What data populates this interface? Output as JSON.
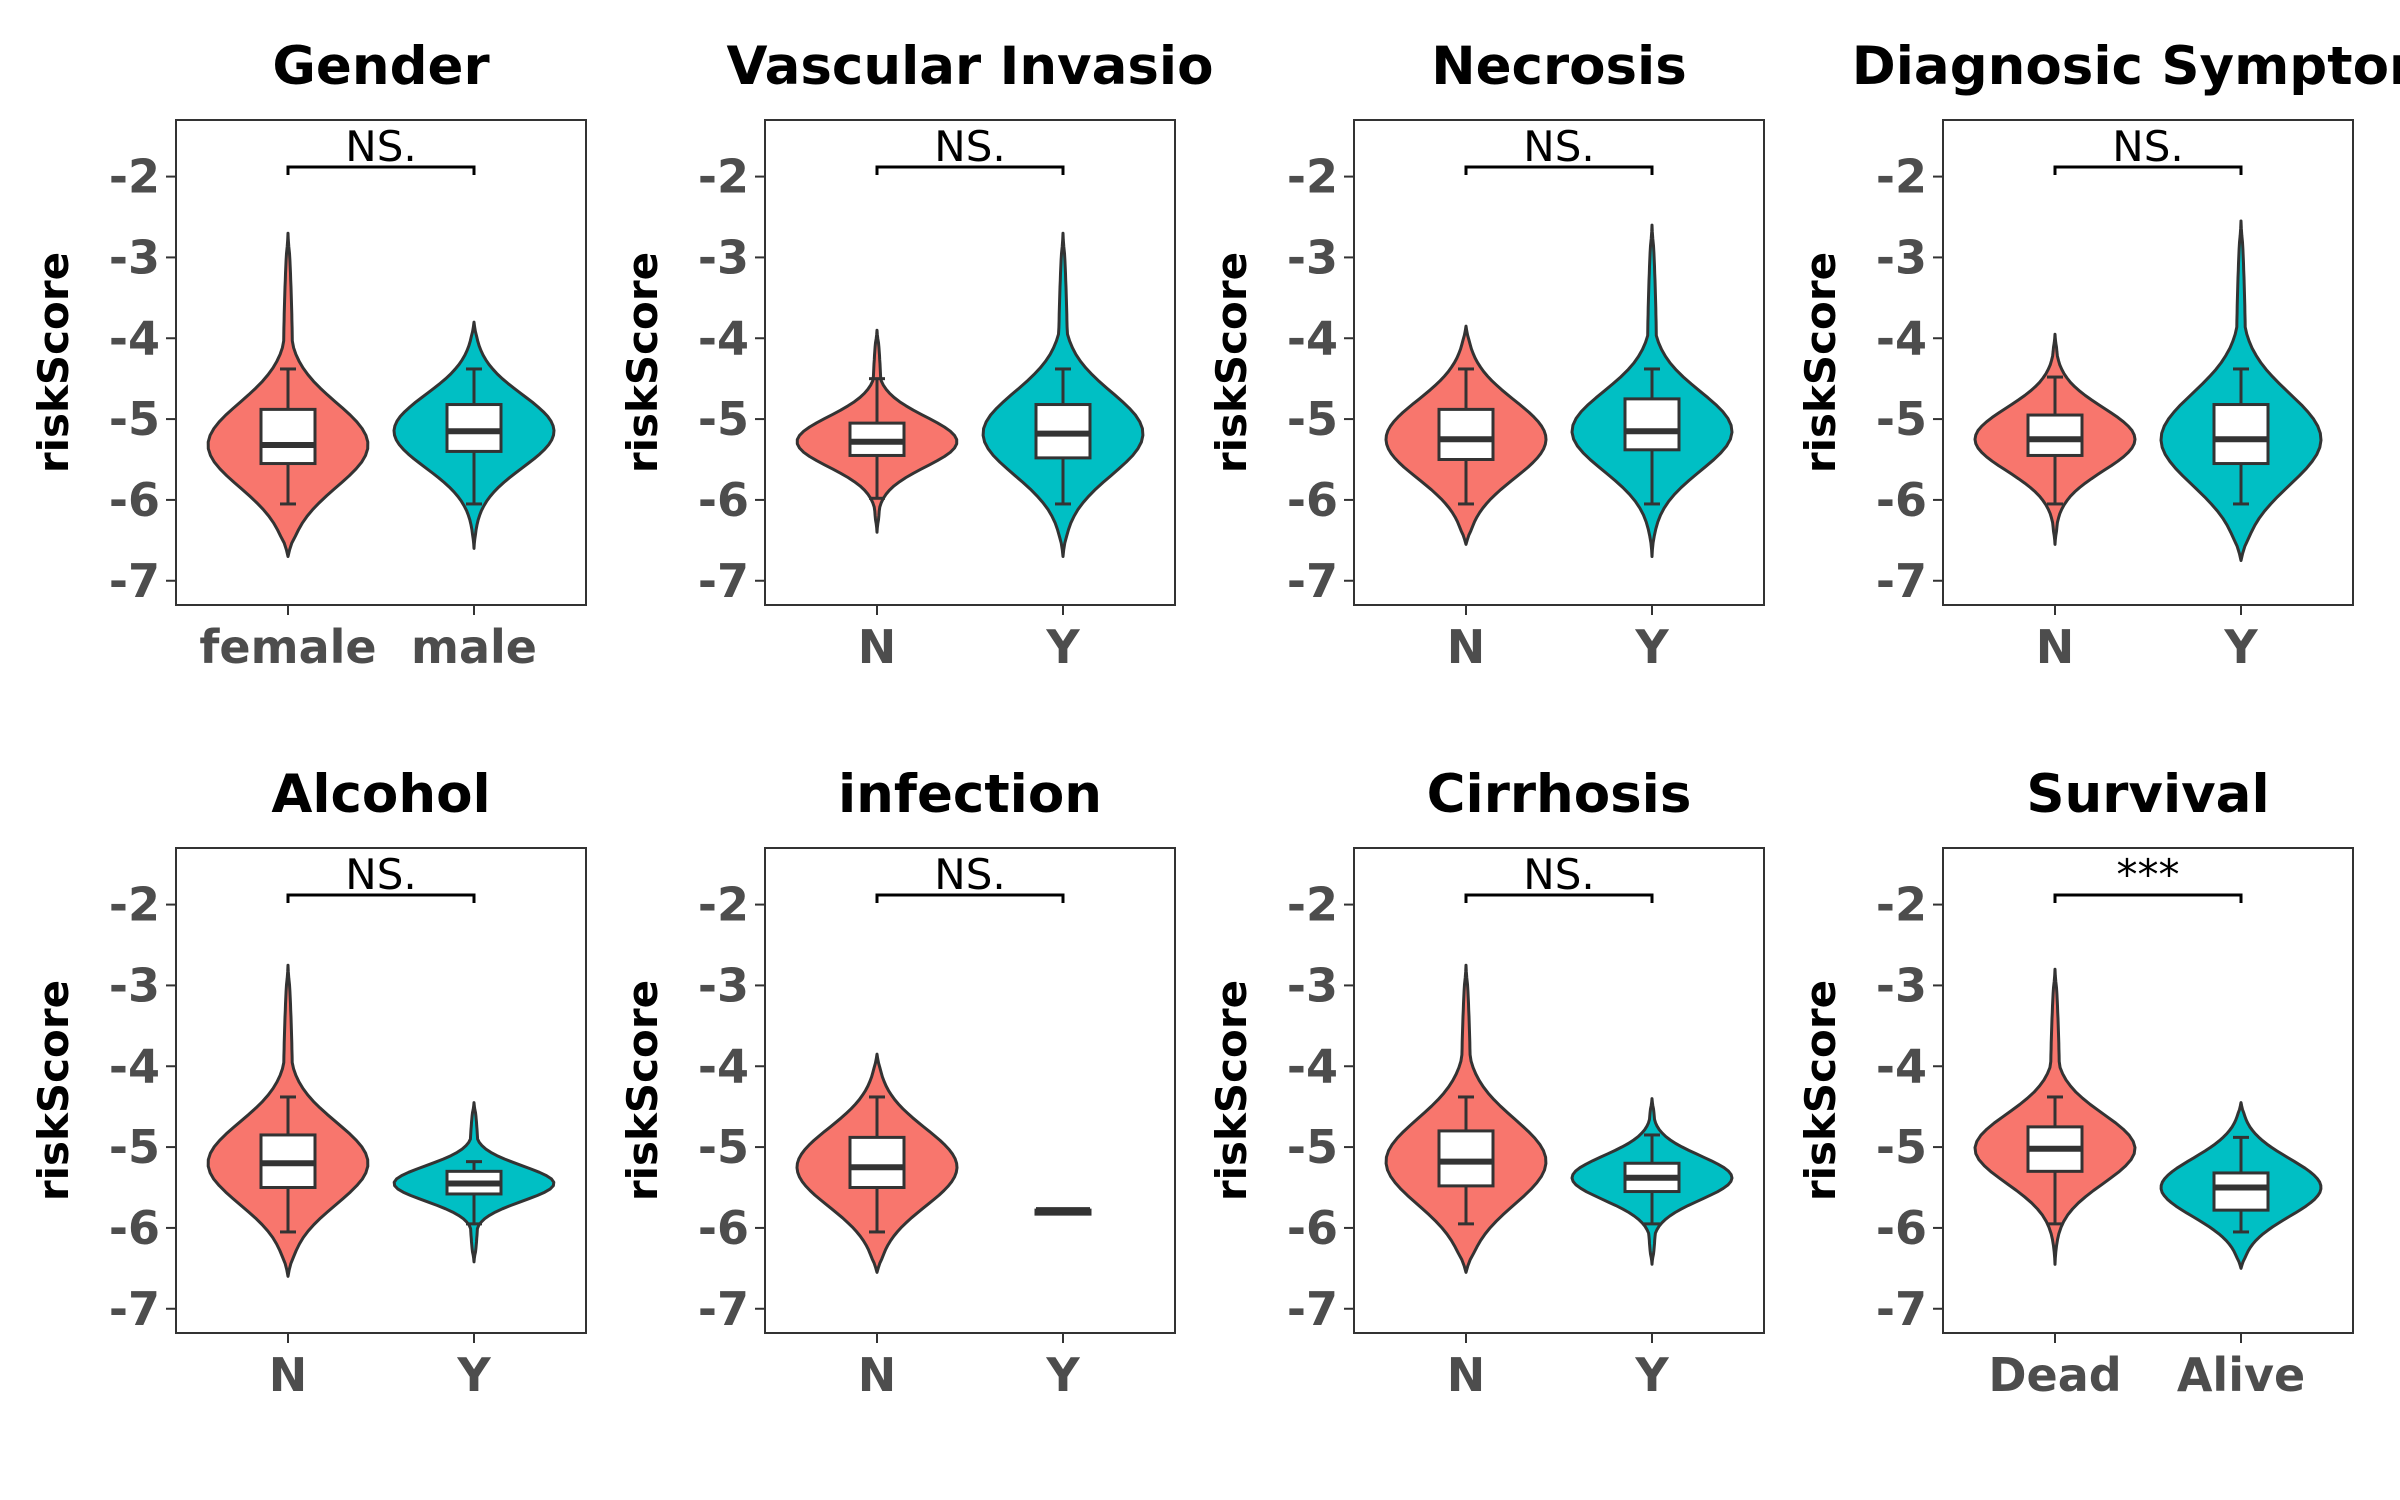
{
  "colors": {
    "first_group": "#F8766D",
    "second_group": "#00BFC4",
    "outline": "#333333",
    "box_fill": "#FFFFFF"
  },
  "chart_data": [
    {
      "type": "violin",
      "title": "Gender",
      "ylabel": "riskScore",
      "ylim": [
        -7.3,
        -1.3
      ],
      "yticks": [
        -2,
        -3,
        -4,
        -5,
        -6,
        -7
      ],
      "ytick_labels": [
        "-2",
        "-3",
        "-4",
        "-5",
        "-6",
        "-7"
      ],
      "categories": [
        "female",
        "male"
      ],
      "significance": "NS.",
      "groups": [
        {
          "name": "female",
          "min": -6.05,
          "q1": -5.55,
          "median": -5.32,
          "q3": -4.88,
          "max": -4.38,
          "vmin": -6.7,
          "vmax": -2.7
        },
        {
          "name": "male",
          "min": -6.05,
          "q1": -5.4,
          "median": -5.15,
          "q3": -4.82,
          "max": -4.38,
          "vmin": -6.6,
          "vmax": -3.8
        }
      ]
    },
    {
      "type": "violin",
      "title": "Vascular Invasio",
      "ylabel": "riskScore",
      "ylim": [
        -7.3,
        -1.3
      ],
      "yticks": [
        -2,
        -3,
        -4,
        -5,
        -6,
        -7
      ],
      "ytick_labels": [
        "-2",
        "-3",
        "-4",
        "-5",
        "-6",
        "-7"
      ],
      "categories": [
        "N",
        "Y"
      ],
      "significance": "NS.",
      "groups": [
        {
          "name": "N",
          "min": -5.98,
          "q1": -5.45,
          "median": -5.28,
          "q3": -5.05,
          "max": -4.5,
          "vmin": -6.4,
          "vmax": -3.9
        },
        {
          "name": "Y",
          "min": -6.05,
          "q1": -5.48,
          "median": -5.18,
          "q3": -4.82,
          "max": -4.38,
          "vmin": -6.7,
          "vmax": -2.7
        }
      ]
    },
    {
      "type": "violin",
      "title": "Necrosis",
      "ylabel": "riskScore",
      "ylim": [
        -7.3,
        -1.3
      ],
      "yticks": [
        -2,
        -3,
        -4,
        -5,
        -6,
        -7
      ],
      "ytick_labels": [
        "-2",
        "-3",
        "-4",
        "-5",
        "-6",
        "-7"
      ],
      "categories": [
        "N",
        "Y"
      ],
      "significance": "NS.",
      "groups": [
        {
          "name": "N",
          "min": -6.05,
          "q1": -5.5,
          "median": -5.25,
          "q3": -4.88,
          "max": -4.38,
          "vmin": -6.55,
          "vmax": -3.85
        },
        {
          "name": "Y",
          "min": -6.05,
          "q1": -5.38,
          "median": -5.15,
          "q3": -4.75,
          "max": -4.38,
          "vmin": -6.7,
          "vmax": -2.6
        }
      ]
    },
    {
      "type": "violin",
      "title": "Diagnosic Symptom",
      "ylabel": "riskScore",
      "ylim": [
        -7.3,
        -1.3
      ],
      "yticks": [
        -2,
        -3,
        -4,
        -5,
        -6,
        -7
      ],
      "ytick_labels": [
        "-2",
        "-3",
        "-4",
        "-5",
        "-6",
        "-7"
      ],
      "categories": [
        "N",
        "Y"
      ],
      "significance": "NS.",
      "groups": [
        {
          "name": "N",
          "min": -6.05,
          "q1": -5.45,
          "median": -5.25,
          "q3": -4.95,
          "max": -4.48,
          "vmin": -6.55,
          "vmax": -3.95
        },
        {
          "name": "Y",
          "min": -6.05,
          "q1": -5.55,
          "median": -5.25,
          "q3": -4.82,
          "max": -4.38,
          "vmin": -6.75,
          "vmax": -2.55
        }
      ]
    },
    {
      "type": "violin",
      "title": "Alcohol",
      "ylabel": "riskScore",
      "ylim": [
        -7.3,
        -1.3
      ],
      "yticks": [
        -2,
        -3,
        -4,
        -5,
        -6,
        -7
      ],
      "ytick_labels": [
        "-2",
        "-3",
        "-4",
        "-5",
        "-6",
        "-7"
      ],
      "categories": [
        "N",
        "Y"
      ],
      "significance": "NS.",
      "groups": [
        {
          "name": "N",
          "min": -6.05,
          "q1": -5.5,
          "median": -5.2,
          "q3": -4.85,
          "max": -4.38,
          "vmin": -6.6,
          "vmax": -2.75
        },
        {
          "name": "Y",
          "min": -5.95,
          "q1": -5.58,
          "median": -5.45,
          "q3": -5.3,
          "max": -5.18,
          "vmin": -6.42,
          "vmax": -4.45
        }
      ]
    },
    {
      "type": "violin",
      "title": "infection",
      "ylabel": "riskScore",
      "ylim": [
        -7.3,
        -1.3
      ],
      "yticks": [
        -2,
        -3,
        -4,
        -5,
        -6,
        -7
      ],
      "ytick_labels": [
        "-2",
        "-3",
        "-4",
        "-5",
        "-6",
        "-7"
      ],
      "categories": [
        "N",
        "Y"
      ],
      "significance": "NS.",
      "groups": [
        {
          "name": "N",
          "min": -6.05,
          "q1": -5.5,
          "median": -5.25,
          "q3": -4.88,
          "max": -4.38,
          "vmin": -6.55,
          "vmax": -3.85
        },
        {
          "name": "Y",
          "min": -5.78,
          "q1": -5.78,
          "median": -5.78,
          "q3": -5.78,
          "max": -5.78,
          "vmin": -5.78,
          "vmax": -5.78
        }
      ]
    },
    {
      "type": "violin",
      "title": "Cirrhosis",
      "ylabel": "riskScore",
      "ylim": [
        -7.3,
        -1.3
      ],
      "yticks": [
        -2,
        -3,
        -4,
        -5,
        -6,
        -7
      ],
      "ytick_labels": [
        "-2",
        "-3",
        "-4",
        "-5",
        "-6",
        "-7"
      ],
      "categories": [
        "N",
        "Y"
      ],
      "significance": "NS.",
      "groups": [
        {
          "name": "N",
          "min": -5.95,
          "q1": -5.48,
          "median": -5.18,
          "q3": -4.8,
          "max": -4.38,
          "vmin": -6.55,
          "vmax": -2.75
        },
        {
          "name": "Y",
          "min": -5.95,
          "q1": -5.55,
          "median": -5.38,
          "q3": -5.2,
          "max": -4.85,
          "vmin": -6.45,
          "vmax": -4.4
        }
      ]
    },
    {
      "type": "violin",
      "title": "Survival",
      "ylabel": "riskScore",
      "ylim": [
        -7.3,
        -1.3
      ],
      "yticks": [
        -2,
        -3,
        -4,
        -5,
        -6,
        -7
      ],
      "ytick_labels": [
        "-2",
        "-3",
        "-4",
        "-5",
        "-6",
        "-7"
      ],
      "categories": [
        "Dead",
        "Alive"
      ],
      "significance": "***",
      "groups": [
        {
          "name": "Dead",
          "min": -5.95,
          "q1": -5.3,
          "median": -5.02,
          "q3": -4.75,
          "max": -4.38,
          "vmin": -6.45,
          "vmax": -2.8
        },
        {
          "name": "Alive",
          "min": -6.05,
          "q1": -5.78,
          "median": -5.5,
          "q3": -5.32,
          "max": -4.88,
          "vmin": -6.5,
          "vmax": -4.45
        }
      ]
    }
  ]
}
